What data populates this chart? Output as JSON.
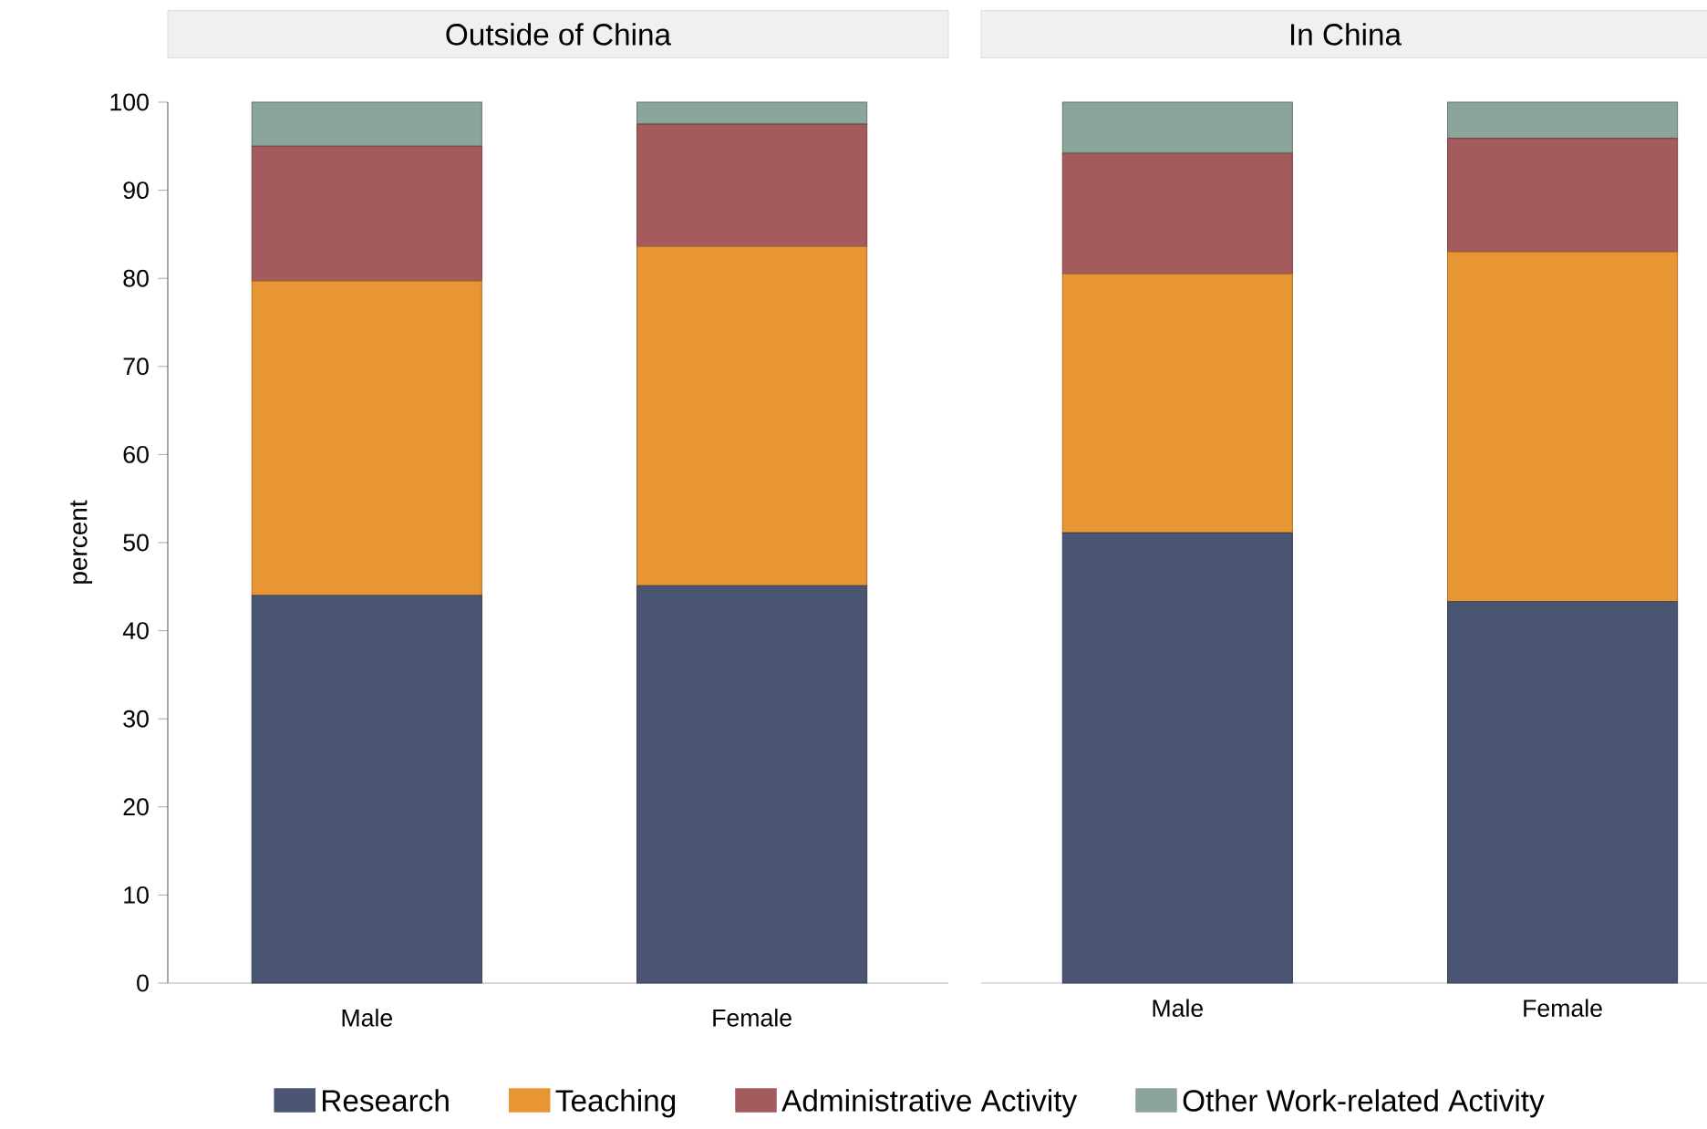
{
  "chart_data": [
    {
      "type": "bar",
      "title": "Outside of China",
      "ylabel": "percent",
      "categories": [
        "Male",
        "Female"
      ],
      "stacked": true,
      "ylim": [
        0,
        100
      ],
      "yticks": [
        0,
        10,
        20,
        30,
        40,
        50,
        60,
        70,
        80,
        90,
        100
      ],
      "legend": "bottom",
      "series": [
        {
          "name": "Research",
          "color": "#4a5573",
          "values": [
            44.0,
            45.1
          ]
        },
        {
          "name": "Teaching",
          "color": "#e89633",
          "values": [
            35.7,
            38.5
          ]
        },
        {
          "name": "Administrative Activity",
          "color": "#a45b5e",
          "values": [
            15.3,
            13.9
          ]
        },
        {
          "name": "Other Work-related Activity",
          "color": "#8ca59a",
          "values": [
            5.0,
            2.5
          ]
        }
      ]
    },
    {
      "type": "bar",
      "title": "In China",
      "categories": [
        "Male",
        "Female"
      ],
      "stacked": true,
      "ylim": [
        0,
        100
      ],
      "yticks": [
        0,
        10,
        20,
        30,
        40,
        50,
        60,
        70,
        80,
        90,
        100
      ],
      "tick_labels": "x",
      "series": [
        {
          "color": "#4a5573",
          "values": [
            51.1,
            43.3
          ]
        },
        {
          "color": "#e89633",
          "values": [
            29.4,
            39.7
          ]
        },
        {
          "color": "#a45b5e",
          "values": [
            13.7,
            12.9
          ]
        },
        {
          "color": "#8ca59a",
          "values": [
            5.8,
            4.1
          ]
        }
      ]
    }
  ]
}
